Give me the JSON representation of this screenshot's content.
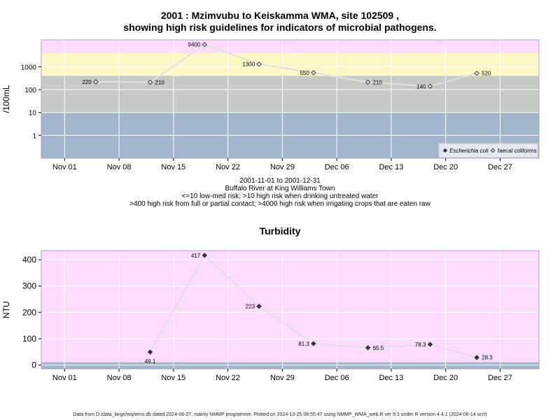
{
  "titles": {
    "line1": "2001 : Mzimvubu to Keiskamma WMA, site 102509 ,",
    "line2": "showing high risk guidelines for indicators of microbial pathogens.",
    "turbidity": "Turbidity"
  },
  "subtitle": [
    "2001-11-01 to 2001-12-31",
    "Buffalo River at King Williams Town",
    "<=10 low-med risk; >10 high risk when drinking untreated water",
    ">400 high risk from full or partial contact; >4000 high risk when irrigating crops that are eaten raw"
  ],
  "footer": "Data from D:/data_large/wq/wms.db dated 2024-08-27, mainly NMMP programme. Plotted on 2024-10-25 08:55:47 using NMMP_WMA_web.R ver 9.3 under R version 4.4.1 (2024-06-14 ucrt)",
  "colors": {
    "band_low": "#a2b5cd",
    "band_mid": "#c4cbc4",
    "band_high": "#fff7c6",
    "band_top": "#ffdcff",
    "turb_bg": "#ffdcff",
    "turb_low": "#a2b5cd",
    "line": "#e0e0e0",
    "frame": "#b0a0c8"
  },
  "chart_data": [
    {
      "type": "scatter",
      "title": "",
      "ylabel": "/100mL",
      "yscale": "log",
      "ylim": [
        0.1,
        15000
      ],
      "xlim": [
        "2001-10-29",
        "2002-01-01"
      ],
      "x_ticks": [
        "Nov 01",
        "Nov 08",
        "Nov 15",
        "Nov 22",
        "Nov 29",
        "Dec 06",
        "Dec 13",
        "Dec 20",
        "Dec 27"
      ],
      "x_tick_dates": [
        "2001-11-01",
        "2001-11-08",
        "2001-11-15",
        "2001-11-22",
        "2001-11-29",
        "2001-12-06",
        "2001-12-13",
        "2001-12-20",
        "2001-12-27"
      ],
      "y_ticks": [
        "1",
        "10",
        "100",
        "1000"
      ],
      "y_tick_values": [
        1,
        10,
        100,
        1000
      ],
      "bands": [
        {
          "from": 0.1,
          "to": 10,
          "color": "#a2b5cd"
        },
        {
          "from": 10,
          "to": 400,
          "color": "#c4cbc4"
        },
        {
          "from": 400,
          "to": 4000,
          "color": "#fff7c6"
        },
        {
          "from": 4000,
          "to": 15000,
          "color": "#ffdcff"
        }
      ],
      "legend": {
        "position": "bottom-right",
        "entries": [
          "Escherichia coli",
          "faecal coliforms"
        ]
      },
      "series": [
        {
          "name": "faecal coliforms",
          "marker": "open-diamond",
          "points": [
            {
              "x": "2001-11-05",
              "y": 220,
              "label": "220"
            },
            {
              "x": "2001-11-12",
              "y": 210,
              "label": "210"
            },
            {
              "x": "2001-11-19",
              "y": 9400,
              "label": "9400"
            },
            {
              "x": "2001-11-26",
              "y": 1300,
              "label": "1300"
            },
            {
              "x": "2001-12-03",
              "y": 550,
              "label": "550"
            },
            {
              "x": "2001-12-10",
              "y": 210,
              "label": "210"
            },
            {
              "x": "2001-12-18",
              "y": 140,
              "label": "140"
            },
            {
              "x": "2001-12-24",
              "y": 520,
              "label": "520"
            }
          ]
        }
      ]
    },
    {
      "type": "scatter",
      "title": "Turbidity",
      "ylabel": "NTU",
      "ylim": [
        -15,
        435
      ],
      "xlim": [
        "2001-10-29",
        "2002-01-01"
      ],
      "x_ticks": [
        "Nov 01",
        "Nov 08",
        "Nov 15",
        "Nov 22",
        "Nov 29",
        "Dec 06",
        "Dec 13",
        "Dec 20",
        "Dec 27"
      ],
      "x_tick_dates": [
        "2001-11-01",
        "2001-11-08",
        "2001-11-15",
        "2001-11-22",
        "2001-11-29",
        "2001-12-06",
        "2001-12-13",
        "2001-12-20",
        "2001-12-27"
      ],
      "y_ticks": [
        "0",
        "100",
        "200",
        "300",
        "400"
      ],
      "y_tick_values": [
        0,
        100,
        200,
        300,
        400
      ],
      "bands": [
        {
          "from": -15,
          "to": 10,
          "color": "#a2b5cd"
        }
      ],
      "series": [
        {
          "name": "",
          "marker": "filled-diamond",
          "points": [
            {
              "x": "2001-11-12",
              "y": 49.1,
              "label": "49.1",
              "label_side": "below"
            },
            {
              "x": "2001-11-19",
              "y": 417,
              "label": "417",
              "label_side": "left"
            },
            {
              "x": "2001-11-26",
              "y": 223,
              "label": "223",
              "label_side": "left"
            },
            {
              "x": "2001-12-03",
              "y": 81.3,
              "label": "81.3",
              "label_side": "left"
            },
            {
              "x": "2001-12-10",
              "y": 65.5,
              "label": "65.5",
              "label_side": "right"
            },
            {
              "x": "2001-12-18",
              "y": 78.3,
              "label": "78.3",
              "label_side": "left"
            },
            {
              "x": "2001-12-24",
              "y": 28.3,
              "label": "28.3",
              "label_side": "right"
            }
          ]
        }
      ]
    }
  ]
}
